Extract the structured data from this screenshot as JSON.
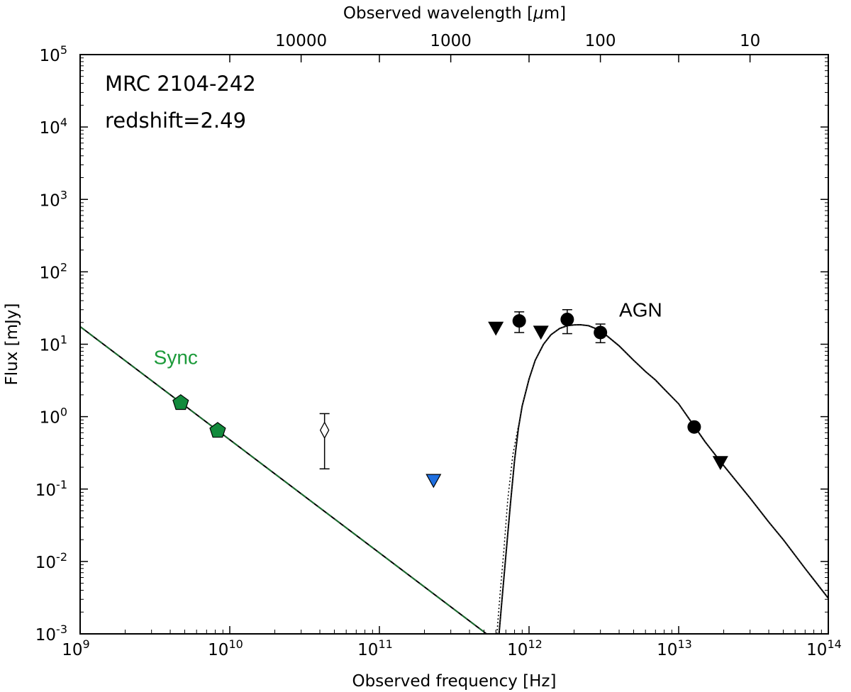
{
  "chart_data": {
    "type": "scatter",
    "xlabel": "Observed frequency [Hz]",
    "ylabel": "Flux [mJy]",
    "top_axis_label_prefix": "Observed wavelength [",
    "top_axis_label_mu": "μ",
    "top_axis_label_suffix": "m]",
    "xlim": [
      1000000000.0,
      100000000000000.0
    ],
    "ylim": [
      0.001,
      100000.0
    ],
    "xscale": "log",
    "yscale": "log",
    "grid": false,
    "x_ticks": [
      {
        "base": "10",
        "exp": "9",
        "value": 1000000000.0
      },
      {
        "base": "10",
        "exp": "10",
        "value": 10000000000.0
      },
      {
        "base": "10",
        "exp": "11",
        "value": 100000000000.0
      },
      {
        "base": "10",
        "exp": "12",
        "value": 1000000000000.0
      },
      {
        "base": "10",
        "exp": "13",
        "value": 10000000000000.0
      },
      {
        "base": "10",
        "exp": "14",
        "value": 100000000000000.0
      }
    ],
    "y_ticks": [
      {
        "base": "10",
        "exp": "-3",
        "value": 0.001
      },
      {
        "base": "10",
        "exp": "-2",
        "value": 0.01
      },
      {
        "base": "10",
        "exp": "-1",
        "value": 0.1
      },
      {
        "base": "10",
        "exp": "0",
        "value": 1
      },
      {
        "base": "10",
        "exp": "1",
        "value": 10
      },
      {
        "base": "10",
        "exp": "2",
        "value": 100
      },
      {
        "base": "10",
        "exp": "3",
        "value": 1000
      },
      {
        "base": "10",
        "exp": "4",
        "value": 10000
      },
      {
        "base": "10",
        "exp": "5",
        "value": 100000
      }
    ],
    "top_ticks": [
      {
        "label": "10000",
        "wavelength_um": 10000
      },
      {
        "label": "1000",
        "wavelength_um": 1000
      },
      {
        "label": "100",
        "wavelength_um": 100
      },
      {
        "label": "10",
        "wavelength_um": 10
      }
    ],
    "annotations": {
      "source_name": "MRC 2104-242",
      "redshift": "redshift=2.49"
    },
    "component_labels": [
      {
        "text": "Sync",
        "x": 3100000000.0,
        "y": 5.3,
        "color": "#1c9a3a"
      },
      {
        "text": "AGN",
        "x": 4000000000000.0,
        "y": 24,
        "color": "#000000"
      }
    ],
    "colors": {
      "sync_points": "#128a3c",
      "sync_line_dash": "#1a6b2e",
      "blue_limit": "#1f6fe0",
      "black": "#000000"
    },
    "series": [
      {
        "kind": "synchrotron_points",
        "marker": "pentagon",
        "points": [
          {
            "x": 4700000000.0,
            "y": 1.55
          },
          {
            "x": 8300000000.0,
            "y": 0.64
          }
        ]
      },
      {
        "kind": "open_diamond_with_errorbar",
        "marker": "diamond-open",
        "points": [
          {
            "x": 43000000000.0,
            "y": 0.65,
            "ylo": 0.19,
            "yhi": 1.1
          }
        ]
      },
      {
        "kind": "upper_limit_blue",
        "marker": "triangle-down",
        "points": [
          {
            "x": 230000000000.0,
            "y": 0.13
          }
        ]
      },
      {
        "kind": "upper_limits",
        "marker": "triangle-down",
        "points": [
          {
            "x": 600000000000.0,
            "y": 16.5
          },
          {
            "x": 1200000000000.0,
            "y": 14.5
          },
          {
            "x": 19000000000000.0,
            "y": 0.23
          }
        ]
      },
      {
        "kind": "detections",
        "marker": "circle",
        "points": [
          {
            "x": 860000000000.0,
            "y": 21,
            "ylo": 14.5,
            "yhi": 28
          },
          {
            "x": 1800000000000.0,
            "y": 22,
            "ylo": 14,
            "yhi": 30
          },
          {
            "x": 3000000000000.0,
            "y": 14.5,
            "ylo": 10.5,
            "yhi": 19
          },
          {
            "x": 12700000000000.0,
            "y": 0.72,
            "ylo": 0.72,
            "yhi": 0.72
          }
        ]
      }
    ],
    "sync_model": {
      "x_start": 1000000000.0,
      "y_start": 17.5,
      "x_end": 520000000000.0,
      "y_end": 0.001
    },
    "agn_model": {
      "points": [
        [
          630000000000.0,
          0.001
        ],
        [
          660000000000.0,
          0.003
        ],
        [
          700000000000.0,
          0.012
        ],
        [
          750000000000.0,
          0.06
        ],
        [
          800000000000.0,
          0.25
        ],
        [
          850000000000.0,
          0.7
        ],
        [
          900000000000.0,
          1.4
        ],
        [
          1000000000000.0,
          3.3
        ],
        [
          1100000000000.0,
          6
        ],
        [
          1250000000000.0,
          10
        ],
        [
          1400000000000.0,
          13.5
        ],
        [
          1600000000000.0,
          16.5
        ],
        [
          1800000000000.0,
          18
        ],
        [
          2000000000000.0,
          18.5
        ],
        [
          2200000000000.0,
          18.6
        ],
        [
          2500000000000.0,
          18
        ],
        [
          3000000000000.0,
          15.5
        ],
        [
          4000000000000.0,
          9.5
        ],
        [
          5000000000000.0,
          6
        ],
        [
          6000000000000.0,
          4.2
        ],
        [
          7000000000000.0,
          3.2
        ],
        [
          8000000000000.0,
          2.4
        ],
        [
          10000000000000.0,
          1.5
        ],
        [
          12700000000000.0,
          0.74
        ],
        [
          15000000000000.0,
          0.45
        ],
        [
          20000000000000.0,
          0.21
        ],
        [
          30000000000000.0,
          0.075
        ],
        [
          40000000000000.0,
          0.035
        ],
        [
          50000000000000.0,
          0.02
        ],
        [
          70000000000000.0,
          0.008
        ],
        [
          100000000000000.0,
          0.0031
        ]
      ],
      "dotted_points": [
        [
          610000000000.0,
          0.001
        ],
        [
          640000000000.0,
          0.0035
        ],
        [
          680000000000.0,
          0.015
        ],
        [
          720000000000.0,
          0.07
        ],
        [
          780000000000.0,
          0.3
        ],
        [
          850000000000.0,
          0.75
        ]
      ]
    }
  }
}
